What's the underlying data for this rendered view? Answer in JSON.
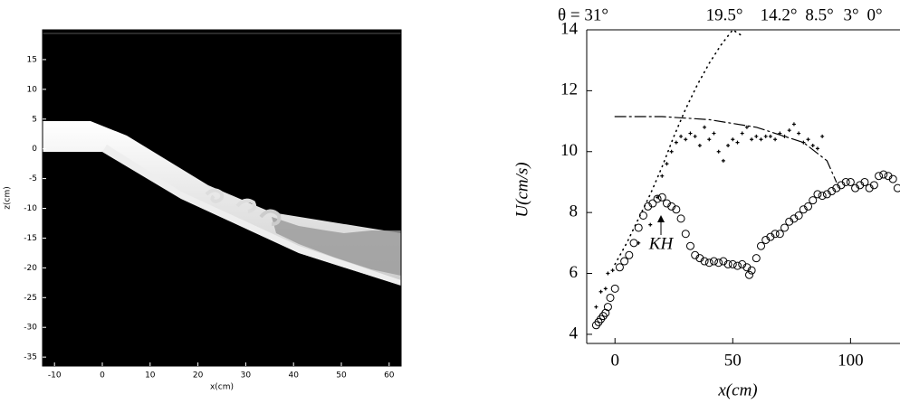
{
  "chart_data": [
    {
      "type": "image",
      "xlabel": "x(cm)",
      "ylabel": "z(cm)",
      "xlim": [
        -12.5,
        62.5
      ],
      "ylim": [
        -36.5,
        20
      ],
      "xticks": [
        -10,
        0,
        10,
        20,
        30,
        40,
        50,
        60
      ],
      "yticks": [
        -35,
        -30,
        -25,
        -20,
        -15,
        -10,
        -5,
        0,
        5,
        10,
        15
      ]
    },
    {
      "type": "scatter",
      "xlabel": "x(cm)",
      "ylabel": "U(cm/s)",
      "xlim": [
        -12,
        121
      ],
      "ylim": [
        3.7,
        14
      ],
      "xticks": [
        0,
        50,
        100
      ],
      "yticks": [
        4,
        6,
        8,
        10,
        12,
        14
      ],
      "annotations": [
        "θ = 31°",
        "19.5°",
        "14.2°",
        "8.5°",
        "3°",
        "0°",
        "KH"
      ],
      "series": [
        {
          "marker": "circle",
          "color": "#000000",
          "x": [
            -8,
            -7,
            -6,
            -5,
            -4,
            -3,
            -2,
            0,
            2,
            4,
            6,
            8,
            10,
            12,
            14,
            16,
            18,
            20,
            22,
            24,
            26,
            28,
            30,
            32,
            34,
            36,
            38,
            40,
            42,
            44,
            46,
            48,
            50,
            52,
            54,
            56,
            57,
            58,
            60,
            62,
            64,
            66,
            68,
            70,
            72,
            74,
            76,
            78,
            80,
            82,
            84,
            86,
            88,
            90,
            92,
            94,
            96,
            98,
            100,
            102,
            104,
            106,
            108,
            110,
            112,
            114,
            116,
            118,
            120
          ],
          "values": [
            4.3,
            4.4,
            4.5,
            4.6,
            4.7,
            4.9,
            5.2,
            5.5,
            6.2,
            6.4,
            6.6,
            7.0,
            7.5,
            7.9,
            8.2,
            8.3,
            8.45,
            8.5,
            8.3,
            8.2,
            8.1,
            7.8,
            7.3,
            6.9,
            6.6,
            6.5,
            6.4,
            6.35,
            6.4,
            6.35,
            6.4,
            6.3,
            6.3,
            6.25,
            6.3,
            6.2,
            5.95,
            6.1,
            6.5,
            6.9,
            7.1,
            7.2,
            7.3,
            7.3,
            7.5,
            7.7,
            7.8,
            7.9,
            8.1,
            8.2,
            8.4,
            8.6,
            8.55,
            8.6,
            8.7,
            8.8,
            8.9,
            9.0,
            9.0,
            8.8,
            8.9,
            9.0,
            8.8,
            8.9,
            9.2,
            9.25,
            9.2,
            9.1,
            8.8
          ]
        },
        {
          "marker": "plus",
          "color": "#000000",
          "x": [
            -8,
            -6,
            -4,
            -3,
            -1,
            10,
            15,
            18,
            20,
            22,
            24,
            26,
            28,
            30,
            32,
            34,
            36,
            38,
            40,
            42,
            44,
            46,
            48,
            50,
            52,
            54,
            56,
            58,
            60,
            62,
            64,
            66,
            68,
            70,
            72,
            74,
            76,
            78,
            80,
            82,
            84,
            86,
            88
          ],
          "values": [
            4.9,
            5.4,
            5.5,
            6.0,
            6.1,
            7.0,
            7.6,
            8.5,
            9.2,
            9.6,
            10.0,
            10.3,
            10.5,
            10.4,
            10.6,
            10.5,
            10.2,
            10.8,
            10.4,
            10.6,
            10.0,
            9.7,
            10.2,
            10.4,
            10.3,
            10.6,
            10.8,
            10.4,
            10.5,
            10.4,
            10.5,
            10.5,
            10.4,
            10.6,
            10.5,
            10.7,
            10.9,
            10.6,
            10.3,
            10.4,
            10.2,
            10.1,
            10.5
          ]
        },
        {
          "marker": "dotted",
          "color": "#000000",
          "x": [
            0,
            5,
            10,
            15,
            20,
            25,
            30,
            35,
            40,
            45,
            50,
            54
          ],
          "values": [
            6.3,
            7.0,
            7.8,
            8.6,
            9.5,
            10.5,
            11.4,
            12.2,
            12.9,
            13.5,
            14.0,
            13.8
          ]
        },
        {
          "marker": "dashdot",
          "color": "#000000",
          "x": [
            0,
            20,
            40,
            60,
            80,
            90,
            94
          ],
          "values": [
            11.15,
            11.15,
            11.05,
            10.8,
            10.3,
            9.7,
            9.0
          ]
        }
      ]
    }
  ]
}
